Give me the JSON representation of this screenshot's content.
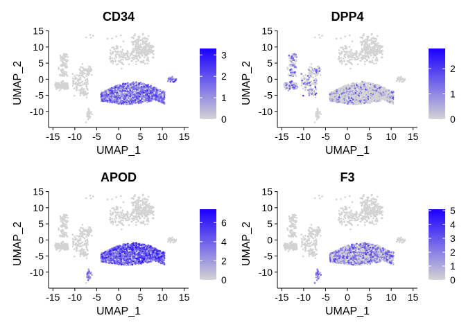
{
  "chart_data": [
    {
      "type": "scatter",
      "title": "CD34",
      "xlabel": "UMAP_1",
      "ylabel": "UMAP_2",
      "xlim": [
        -16,
        16
      ],
      "ylim": [
        -15,
        16
      ],
      "xticks": [
        -15,
        -10,
        -5,
        0,
        5,
        10,
        15
      ],
      "yticks": [
        15,
        10,
        5,
        0,
        -5,
        -10
      ],
      "colorbar": {
        "min": 0,
        "max": 3.3,
        "ticks": [
          3,
          2,
          1,
          0
        ],
        "low_color": "#d3d3d3",
        "high_color": "#1a00ff"
      },
      "highlight": {
        "cluster": "main_arc",
        "intensity": 0.55,
        "fraction": 0.85
      },
      "side_clusters": [
        {
          "cluster": "right_small",
          "intensity": 0.6
        }
      ]
    },
    {
      "type": "scatter",
      "title": "DPP4",
      "xlabel": "UMAP_1",
      "ylabel": "UMAP_2",
      "xlim": [
        -16,
        16
      ],
      "ylim": [
        -15,
        16
      ],
      "xticks": [
        -15,
        -10,
        -5,
        0,
        5,
        10,
        15
      ],
      "yticks": [
        15,
        10,
        5,
        0,
        -5,
        -10
      ],
      "colorbar": {
        "min": 0,
        "max": 2.8,
        "ticks": [
          2,
          1,
          0
        ],
        "low_color": "#d3d3d3",
        "high_color": "#1a00ff"
      },
      "highlight": {
        "cluster": "left_branches",
        "intensity": 0.5,
        "fraction": 0.4
      },
      "side_clusters": [
        {
          "cluster": "main_arc",
          "intensity": 0.45,
          "fraction": 0.3
        }
      ]
    },
    {
      "type": "scatter",
      "title": "APOD",
      "xlabel": "UMAP_1",
      "ylabel": "UMAP_2",
      "xlim": [
        -16,
        16
      ],
      "ylim": [
        -15,
        16
      ],
      "xticks": [
        -15,
        -10,
        -5,
        0,
        5,
        10,
        15
      ],
      "yticks": [
        15,
        10,
        5,
        0,
        -5,
        -10
      ],
      "colorbar": {
        "min": 0,
        "max": 7.4,
        "ticks": [
          6,
          4,
          2,
          0
        ],
        "low_color": "#d3d3d3",
        "high_color": "#1a00ff"
      },
      "highlight": {
        "cluster": "main_arc",
        "intensity": 0.65,
        "fraction": 0.95
      },
      "side_clusters": [
        {
          "cluster": "bottom_small",
          "intensity": 0.5
        }
      ]
    },
    {
      "type": "scatter",
      "title": "F3",
      "xlabel": "UMAP_1",
      "ylabel": "UMAP_2",
      "xlim": [
        -16,
        16
      ],
      "ylim": [
        -15,
        16
      ],
      "xticks": [
        -15,
        -10,
        -5,
        0,
        5,
        10,
        15
      ],
      "yticks": [
        15,
        10,
        5,
        0,
        -5,
        -10
      ],
      "colorbar": {
        "min": 0,
        "max": 5.1,
        "ticks": [
          5,
          4,
          3,
          2,
          1,
          0
        ],
        "low_color": "#d3d3d3",
        "high_color": "#1a00ff"
      },
      "highlight": {
        "cluster": "main_arc",
        "intensity": 0.5,
        "fraction": 0.6
      },
      "side_clusters": [
        {
          "cluster": "bottom_small",
          "intensity": 0.45
        }
      ]
    }
  ]
}
